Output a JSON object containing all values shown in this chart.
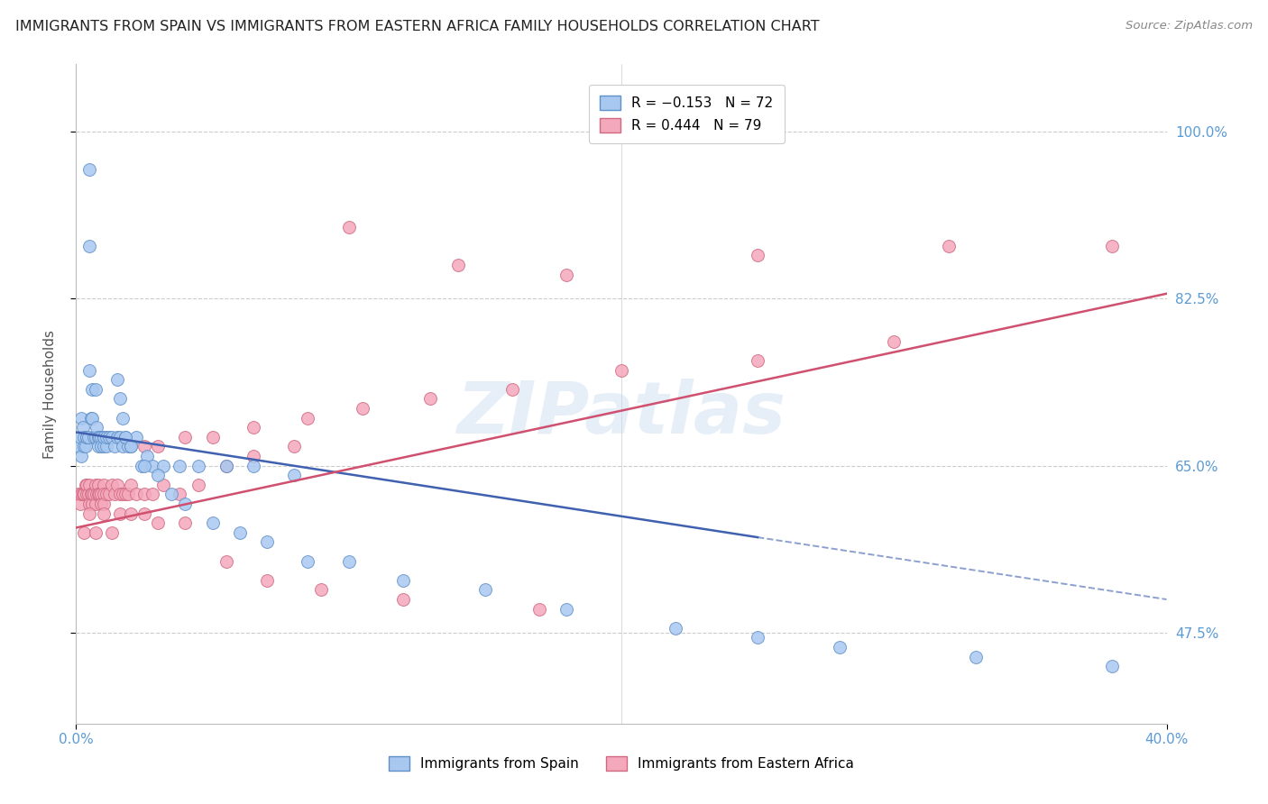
{
  "title": "IMMIGRANTS FROM SPAIN VS IMMIGRANTS FROM EASTERN AFRICA FAMILY HOUSEHOLDS CORRELATION CHART",
  "source": "Source: ZipAtlas.com",
  "ylabel": "Family Households",
  "ytick_labels": [
    "47.5%",
    "65.0%",
    "82.5%",
    "100.0%"
  ],
  "ytick_vals": [
    47.5,
    65.0,
    82.5,
    100.0
  ],
  "xmin": 0.0,
  "xmax": 40.0,
  "ymin": 38.0,
  "ymax": 107.0,
  "blue_color": "#A8C8F0",
  "pink_color": "#F4A8BC",
  "blue_edge_color": "#6090C8",
  "pink_edge_color": "#D06880",
  "blue_line_color": "#4060B0",
  "pink_line_color": "#D05070",
  "legend_blue_series": "Immigrants from Spain",
  "legend_pink_series": "Immigrants from Eastern Africa",
  "watermark": "ZIPatlas",
  "blue_scatter_x": [
    0.1,
    0.15,
    0.2,
    0.2,
    0.25,
    0.3,
    0.3,
    0.35,
    0.4,
    0.4,
    0.45,
    0.5,
    0.5,
    0.5,
    0.55,
    0.6,
    0.6,
    0.65,
    0.7,
    0.7,
    0.75,
    0.8,
    0.8,
    0.85,
    0.9,
    0.9,
    1.0,
    1.0,
    1.0,
    1.1,
    1.1,
    1.2,
    1.3,
    1.4,
    1.5,
    1.6,
    1.7,
    1.8,
    1.9,
    2.0,
    2.2,
    2.4,
    2.6,
    2.8,
    3.2,
    3.8,
    4.5,
    5.5,
    6.5,
    8.0,
    1.5,
    1.6,
    1.7,
    1.8,
    2.0,
    2.5,
    3.0,
    3.5,
    4.0,
    5.0,
    6.0,
    7.0,
    8.5,
    10.0,
    12.0,
    15.0,
    18.0,
    22.0,
    25.0,
    28.0,
    33.0,
    38.0
  ],
  "blue_scatter_y": [
    67.0,
    68.0,
    66.0,
    70.0,
    69.0,
    68.0,
    67.0,
    67.0,
    68.0,
    68.0,
    68.0,
    96.0,
    88.0,
    75.0,
    70.0,
    73.0,
    70.0,
    68.0,
    73.0,
    68.0,
    69.0,
    68.0,
    67.0,
    68.0,
    68.0,
    67.0,
    68.0,
    67.0,
    68.0,
    67.0,
    68.0,
    68.0,
    68.0,
    67.0,
    68.0,
    68.0,
    67.0,
    68.0,
    67.0,
    67.0,
    68.0,
    65.0,
    66.0,
    65.0,
    65.0,
    65.0,
    65.0,
    65.0,
    65.0,
    64.0,
    74.0,
    72.0,
    70.0,
    68.0,
    67.0,
    65.0,
    64.0,
    62.0,
    61.0,
    59.0,
    58.0,
    57.0,
    55.0,
    55.0,
    53.0,
    52.0,
    50.0,
    48.0,
    47.0,
    46.0,
    45.0,
    44.0
  ],
  "pink_scatter_x": [
    0.1,
    0.15,
    0.2,
    0.25,
    0.3,
    0.35,
    0.4,
    0.4,
    0.45,
    0.5,
    0.5,
    0.55,
    0.6,
    0.6,
    0.65,
    0.7,
    0.7,
    0.75,
    0.8,
    0.8,
    0.85,
    0.9,
    0.9,
    1.0,
    1.0,
    1.0,
    1.1,
    1.2,
    1.3,
    1.4,
    1.5,
    1.6,
    1.7,
    1.8,
    1.9,
    2.0,
    2.2,
    2.5,
    2.8,
    3.2,
    3.8,
    4.5,
    5.5,
    6.5,
    8.0,
    2.5,
    3.0,
    4.0,
    5.0,
    6.5,
    8.5,
    10.5,
    13.0,
    16.0,
    20.0,
    25.0,
    30.0,
    10.0,
    14.0,
    18.0,
    25.0,
    32.0,
    38.0,
    0.3,
    0.5,
    0.7,
    1.0,
    1.3,
    1.6,
    2.0,
    2.5,
    3.0,
    4.0,
    5.5,
    7.0,
    9.0,
    12.0,
    17.0
  ],
  "pink_scatter_y": [
    62.0,
    61.0,
    62.0,
    62.0,
    62.0,
    63.0,
    62.0,
    63.0,
    62.0,
    63.0,
    61.0,
    62.0,
    61.0,
    62.0,
    62.0,
    61.0,
    63.0,
    62.0,
    63.0,
    62.0,
    62.0,
    62.0,
    61.0,
    63.0,
    62.0,
    61.0,
    62.0,
    62.0,
    63.0,
    62.0,
    63.0,
    62.0,
    62.0,
    62.0,
    62.0,
    63.0,
    62.0,
    62.0,
    62.0,
    63.0,
    62.0,
    63.0,
    65.0,
    66.0,
    67.0,
    67.0,
    67.0,
    68.0,
    68.0,
    69.0,
    70.0,
    71.0,
    72.0,
    73.0,
    75.0,
    76.0,
    78.0,
    90.0,
    86.0,
    85.0,
    87.0,
    88.0,
    88.0,
    58.0,
    60.0,
    58.0,
    60.0,
    58.0,
    60.0,
    60.0,
    60.0,
    59.0,
    59.0,
    55.0,
    53.0,
    52.0,
    51.0,
    50.0
  ],
  "blue_line_x0": 0.0,
  "blue_line_y0": 68.5,
  "blue_line_x1": 25.0,
  "blue_line_y1": 57.5,
  "blue_dash_x0": 25.0,
  "blue_dash_y0": 57.5,
  "blue_dash_x1": 40.0,
  "blue_dash_y1": 51.0,
  "pink_line_x0": 0.0,
  "pink_line_y0": 58.5,
  "pink_line_x1": 40.0,
  "pink_line_y1": 83.0
}
